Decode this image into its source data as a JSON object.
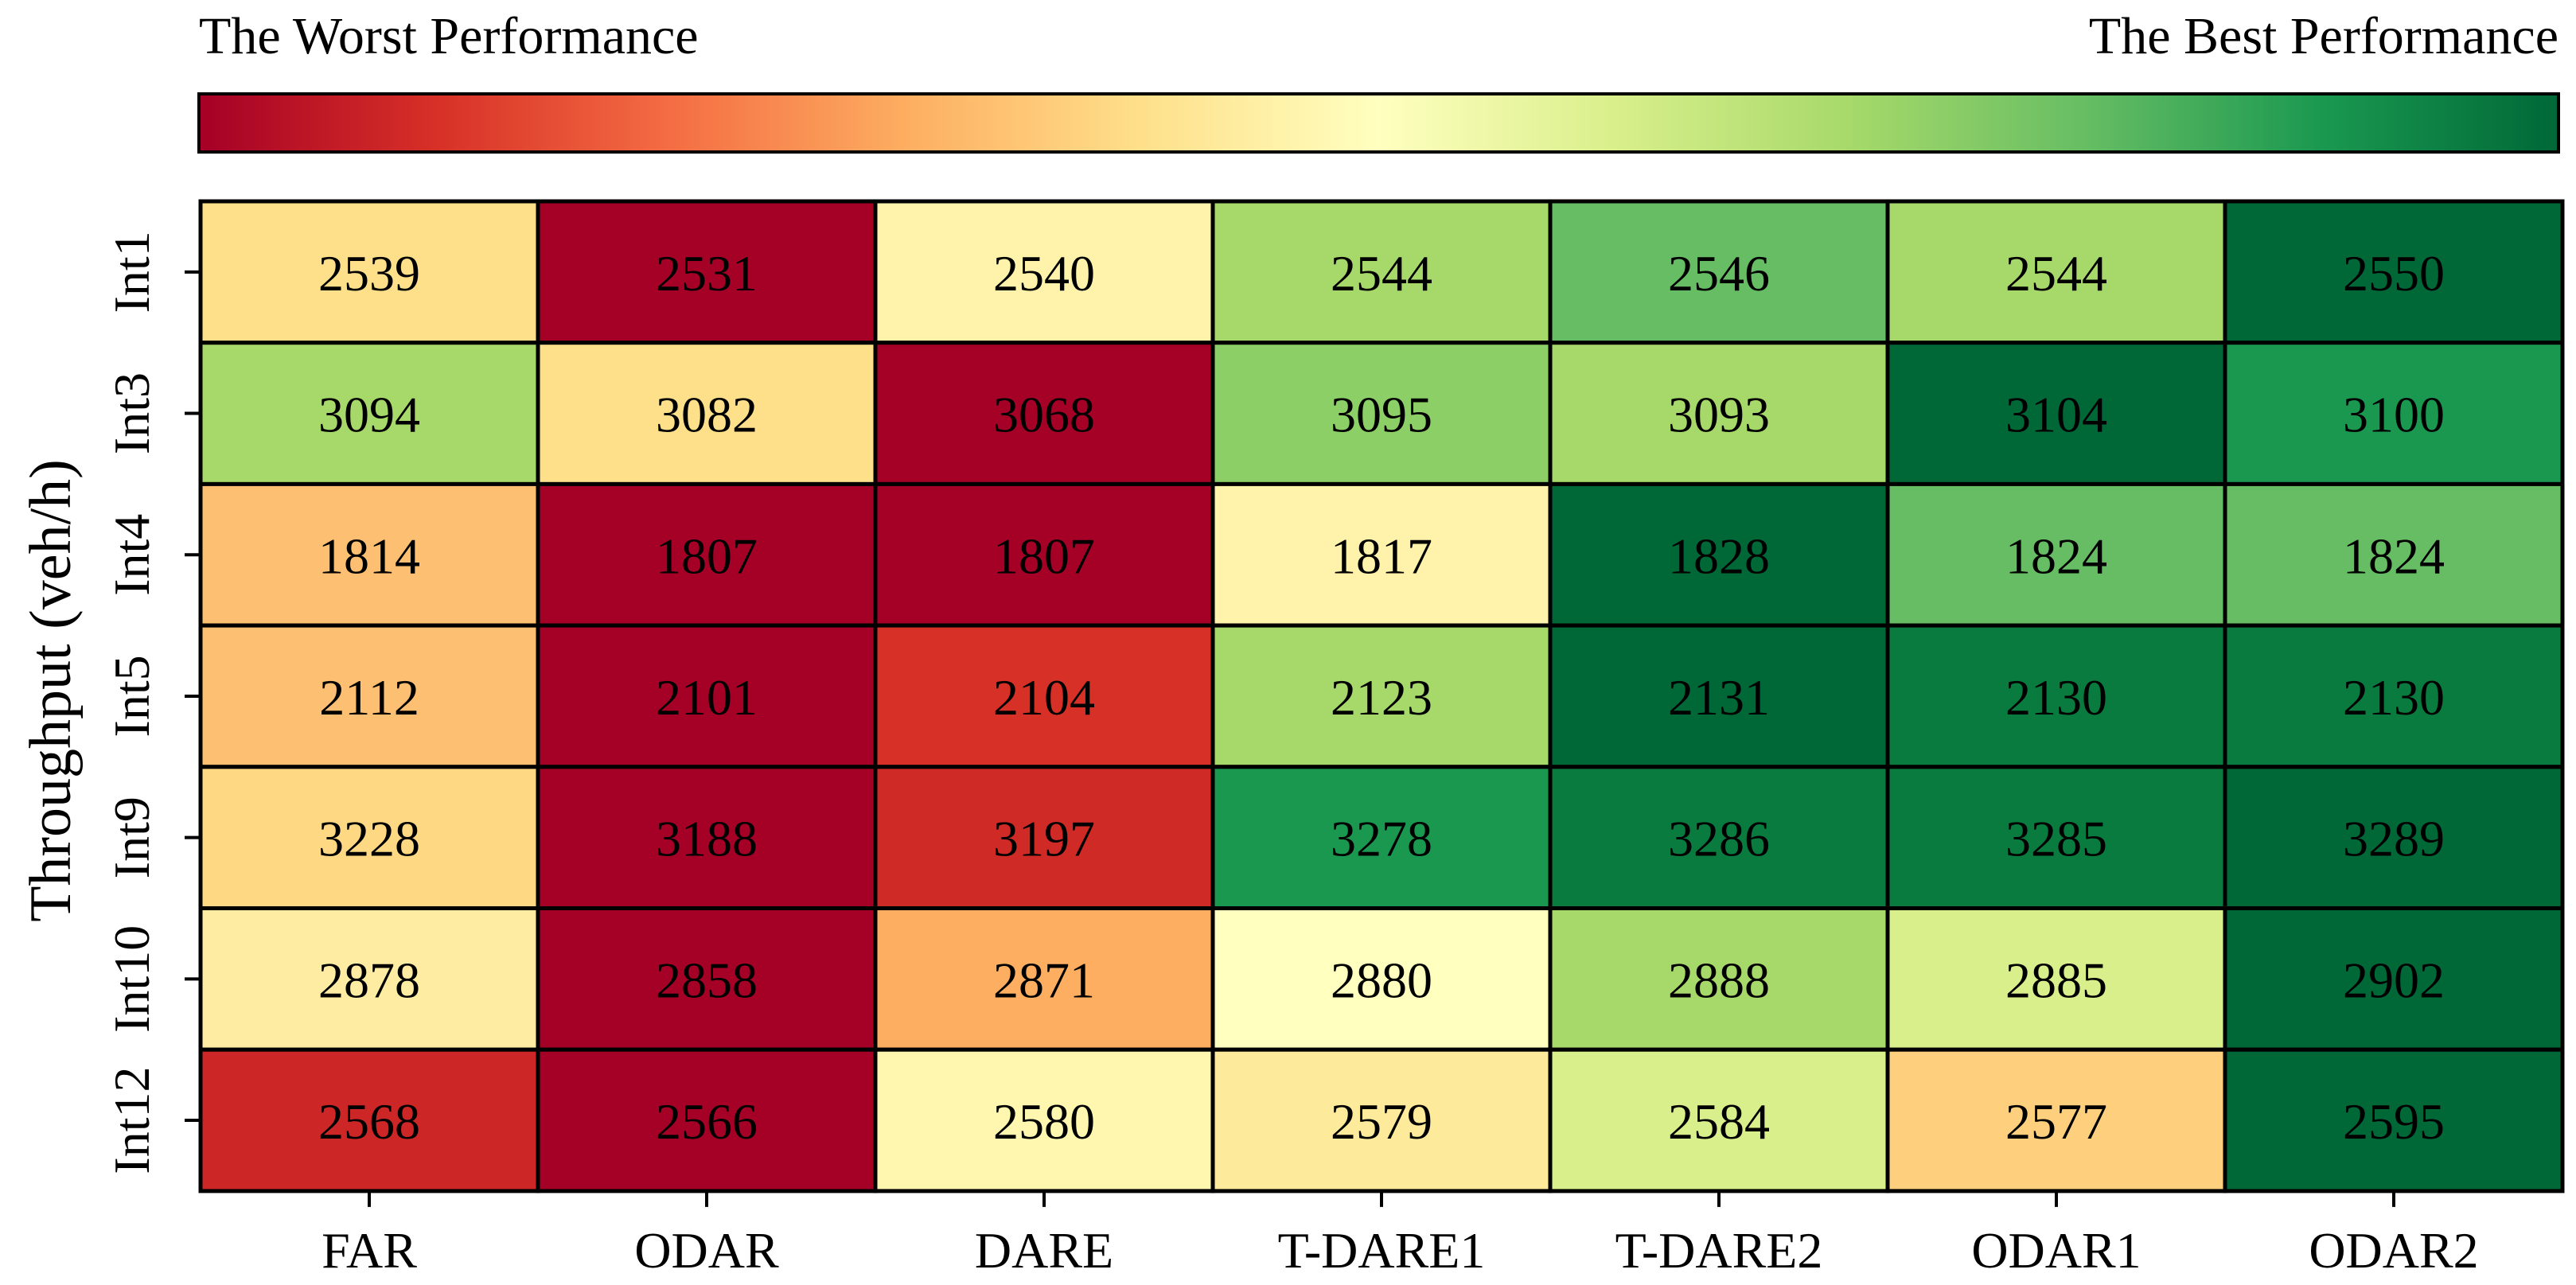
{
  "colorbar": {
    "left_label": "The Worst Performance",
    "right_label": "The Best Performance",
    "gradient": [
      "#a50026",
      "#d73027",
      "#f46d43",
      "#fdae61",
      "#fee08b",
      "#ffffbf",
      "#d9ef8b",
      "#a6d96a",
      "#66bd63",
      "#1a9850",
      "#006837"
    ]
  },
  "chart_data": {
    "type": "heatmap",
    "title": "",
    "xlabel": "",
    "ylabel": "Throughput (veh/h)",
    "columns": [
      "FAR",
      "ODAR",
      "DARE",
      "T-DARE1",
      "T-DARE2",
      "ODAR1",
      "ODAR2"
    ],
    "rows": [
      "Int1",
      "Int3",
      "Int4",
      "Int5",
      "Int9",
      "Int10",
      "Int12"
    ],
    "values": [
      [
        2539,
        2531,
        2540,
        2544,
        2546,
        2544,
        2550
      ],
      [
        3094,
        3082,
        3068,
        3095,
        3093,
        3104,
        3100
      ],
      [
        1814,
        1807,
        1807,
        1817,
        1828,
        1824,
        1824
      ],
      [
        2112,
        2101,
        2104,
        2123,
        2131,
        2130,
        2130
      ],
      [
        3228,
        3188,
        3197,
        3278,
        3286,
        3285,
        3289
      ],
      [
        2878,
        2858,
        2871,
        2880,
        2888,
        2885,
        2902
      ],
      [
        2568,
        2566,
        2580,
        2579,
        2584,
        2577,
        2595
      ]
    ],
    "cell_colors": [
      [
        "#fee08b",
        "#a50026",
        "#fff2aa",
        "#a6d96a",
        "#66bd63",
        "#a6d96a",
        "#006837"
      ],
      [
        "#a6d96a",
        "#fee08b",
        "#a50026",
        "#8ccf66",
        "#a6d96a",
        "#006837",
        "#1a9850"
      ],
      [
        "#fdbf71",
        "#a50026",
        "#a50026",
        "#fff2aa",
        "#006837",
        "#66bd63",
        "#66bd63"
      ],
      [
        "#fdbf71",
        "#a50026",
        "#d73027",
        "#a6d96a",
        "#006837",
        "#0a7b3e",
        "#0a7b3e"
      ],
      [
        "#fed883",
        "#a50026",
        "#cf2a26",
        "#1a9850",
        "#0a7b3e",
        "#0a7b3e",
        "#006837"
      ],
      [
        "#feeca2",
        "#a50026",
        "#fdae61",
        "#ffffbf",
        "#a6d96a",
        "#d9ef8b",
        "#006837"
      ],
      [
        "#cc2627",
        "#a50026",
        "#fff6b0",
        "#feea9b",
        "#d9ef8b",
        "#fed07e",
        "#006837"
      ]
    ]
  }
}
